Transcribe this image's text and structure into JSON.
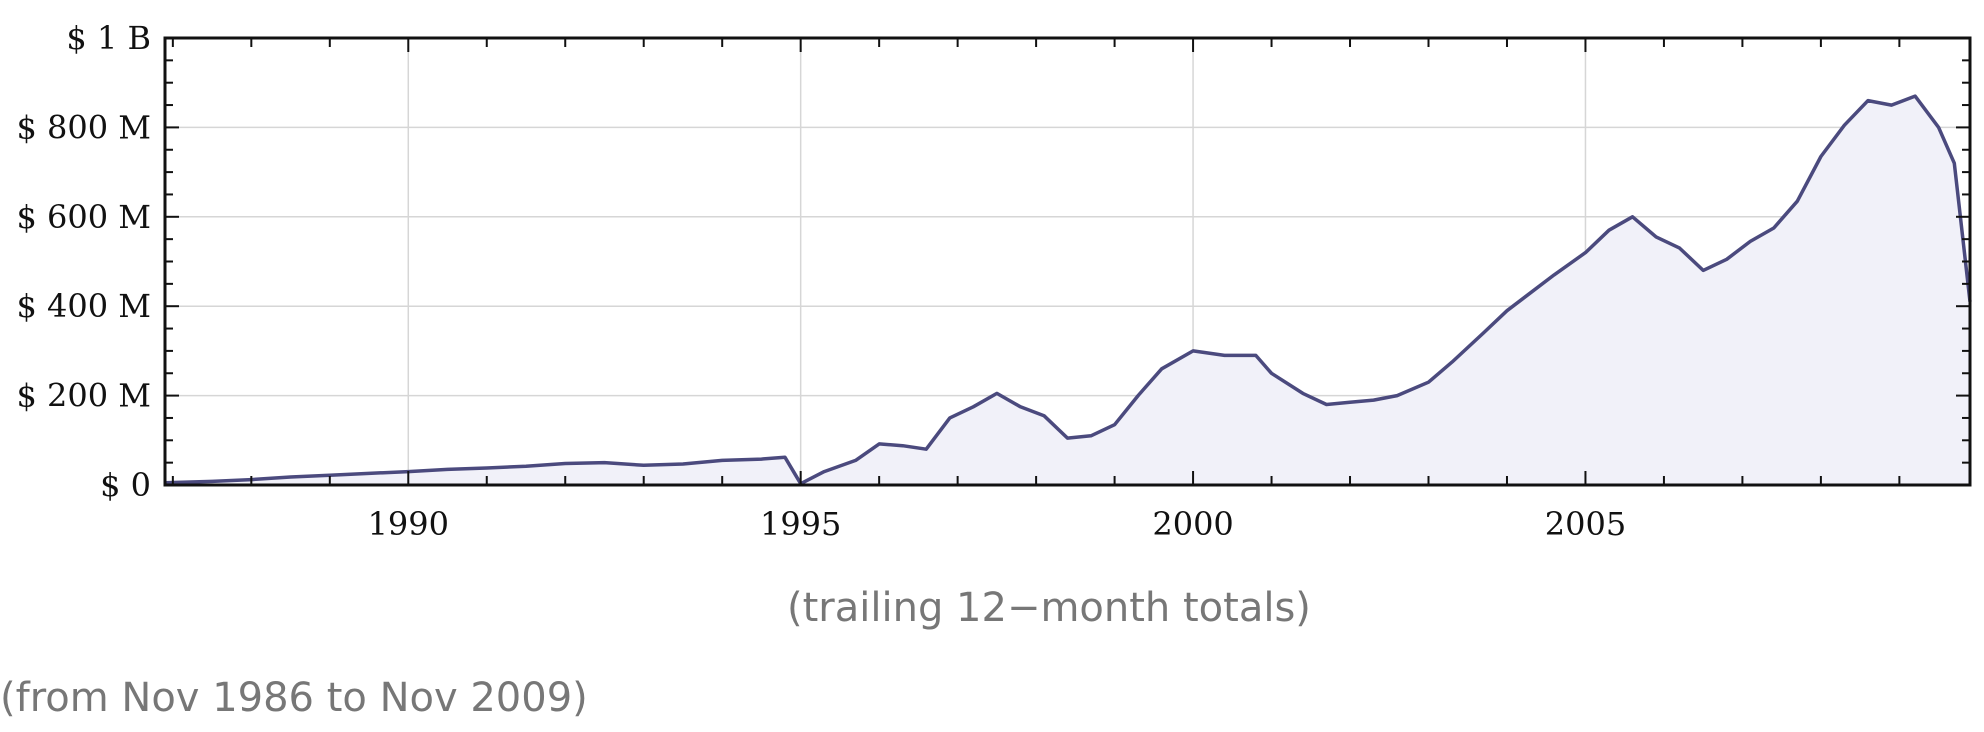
{
  "chart_data": {
    "type": "area",
    "x_unit": "year",
    "xlim": [
      1986.9,
      2009.9
    ],
    "ylim": [
      0,
      1000
    ],
    "y_unit": "$ millions",
    "x_ticks": [
      1990,
      1995,
      2000,
      2005
    ],
    "x_tick_labels": [
      "1990",
      "1995",
      "2000",
      "2005"
    ],
    "y_ticks": [
      0,
      200,
      400,
      600,
      800,
      1000
    ],
    "y_tick_labels": [
      "$ 0",
      "$ 200 M",
      "$ 400 M",
      "$ 600 M",
      "$ 800 M",
      "$ 1 B"
    ],
    "grid": true,
    "line_color": "#4b4a7e",
    "fill_color": "#f1f1f9",
    "x": [
      1986.9,
      1987.5,
      1988.0,
      1988.5,
      1989.0,
      1989.5,
      1990.0,
      1990.5,
      1991.0,
      1991.5,
      1992.0,
      1992.5,
      1993.0,
      1993.5,
      1994.0,
      1994.5,
      1994.8,
      1995.0,
      1995.3,
      1995.7,
      1996.0,
      1996.3,
      1996.6,
      1996.9,
      1997.2,
      1997.5,
      1997.8,
      1998.1,
      1998.4,
      1998.7,
      1999.0,
      1999.3,
      1999.6,
      2000.0,
      2000.4,
      2000.8,
      2001.0,
      2001.4,
      2001.7,
      2002.0,
      2002.3,
      2002.6,
      2003.0,
      2003.3,
      2003.7,
      2004.0,
      2004.3,
      2004.6,
      2005.0,
      2005.3,
      2005.6,
      2005.9,
      2006.2,
      2006.5,
      2006.8,
      2007.1,
      2007.4,
      2007.7,
      2008.0,
      2008.3,
      2008.6,
      2008.9,
      2009.2,
      2009.5,
      2009.7,
      2009.9
    ],
    "values": [
      5,
      8,
      12,
      18,
      22,
      26,
      30,
      35,
      38,
      42,
      48,
      50,
      44,
      47,
      55,
      58,
      62,
      3,
      30,
      55,
      92,
      88,
      80,
      150,
      175,
      205,
      175,
      155,
      105,
      110,
      135,
      200,
      260,
      300,
      290,
      290,
      250,
      205,
      180,
      185,
      190,
      200,
      230,
      275,
      340,
      390,
      430,
      470,
      520,
      570,
      600,
      555,
      530,
      480,
      505,
      545,
      575,
      635,
      735,
      805,
      860,
      850,
      870,
      800,
      720,
      410
    ],
    "subtitle": "(trailing 12−month totals)"
  },
  "note": "(from Nov 1986 to Nov 2009)"
}
